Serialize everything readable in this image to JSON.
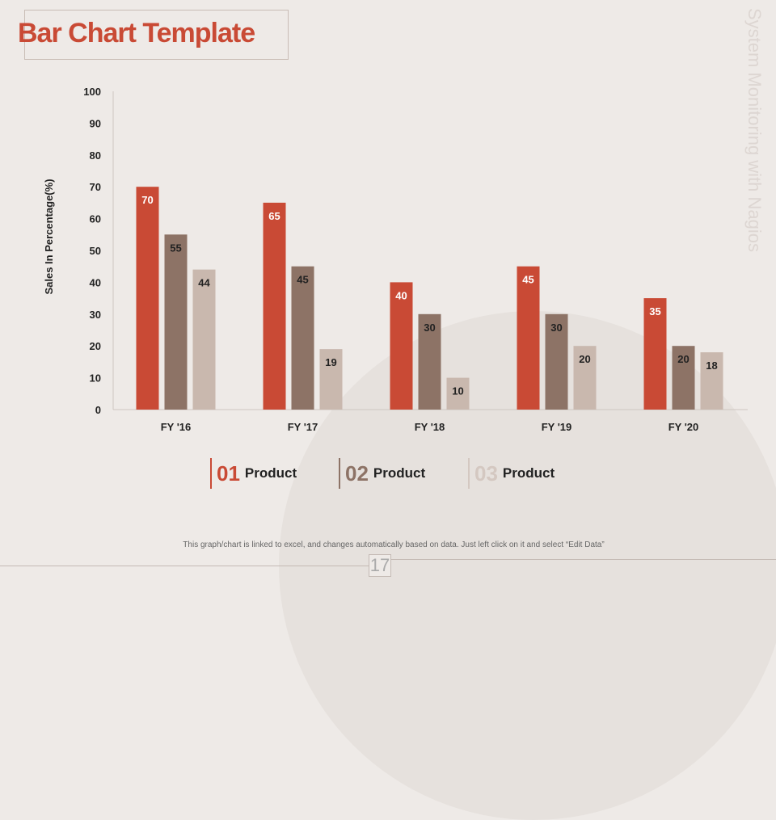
{
  "title": "Bar Chart Template",
  "watermark": "System Monitoring with Nagios",
  "footer_note": "This graph/chart is linked to excel, and changes automatically based on data. Just left click on it and select “Edit Data”",
  "page_number": "17",
  "colors": {
    "series1": "#c94a35",
    "series2": "#8d7366",
    "series3": "#c9b8ae"
  },
  "legend": [
    {
      "num": "01",
      "label": "Product"
    },
    {
      "num": "02",
      "label": "Product"
    },
    {
      "num": "03",
      "label": "Product"
    }
  ],
  "chart_data": {
    "type": "bar",
    "title": "",
    "xlabel": "",
    "ylabel": "Sales In Percentage(%)",
    "ylim": [
      0,
      100
    ],
    "yticks": [
      0,
      10,
      20,
      30,
      40,
      50,
      60,
      70,
      80,
      90,
      100
    ],
    "categories": [
      "FY '16",
      "FY '17",
      "FY '18",
      "FY '19",
      "FY '20"
    ],
    "series": [
      {
        "name": "01 Product",
        "values": [
          70,
          65,
          40,
          45,
          35
        ]
      },
      {
        "name": "02 Product",
        "values": [
          55,
          45,
          30,
          30,
          20
        ]
      },
      {
        "name": "03 Product",
        "values": [
          44,
          19,
          10,
          20,
          18
        ]
      }
    ],
    "legend_position": "bottom",
    "grid": false
  }
}
